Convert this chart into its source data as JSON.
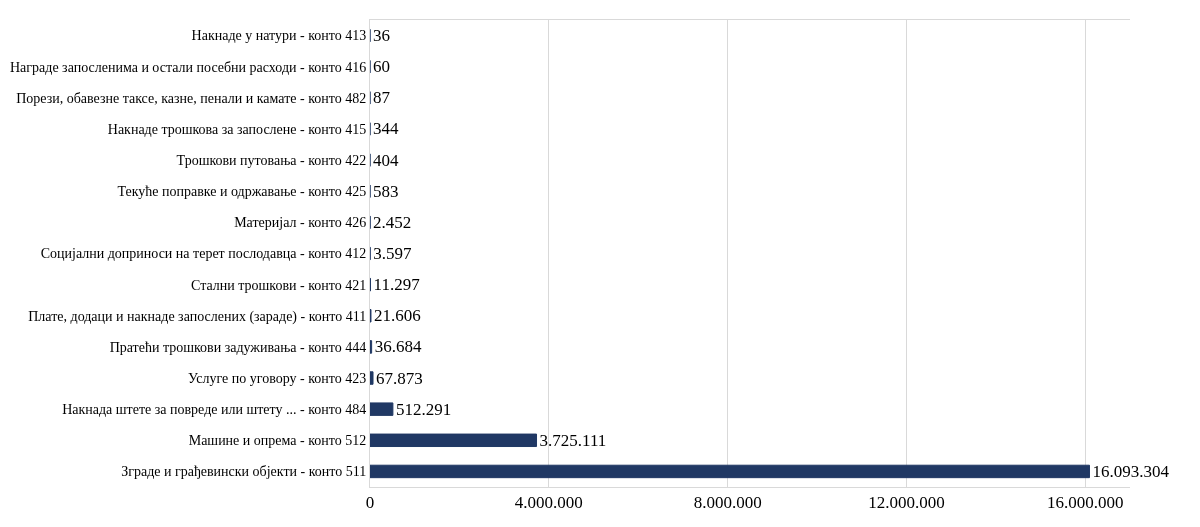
{
  "chart_data": {
    "type": "bar",
    "orientation": "horizontal",
    "categories": [
      "Накнаде у натури - конто 413",
      "Награде запосленима и остали посебни расходи - конто 416",
      "Порези, обавезне таксе, казне, пенали и камате - конто 482",
      "Накнаде трошкова за запослене - конто 415",
      "Трошкови путовања - конто 422",
      "Текуће поправке и одржавање - конто 425",
      "Материјал - конто 426",
      "Социјални доприноси на терет послодавца - конто 412",
      "Стални трошкови - конто 421",
      "Плате, додаци и накнаде запослених (зараде) - конто 411",
      "Пратећи трошкови задуживања - конто 444",
      "Услуге по уговору - конто 423",
      "Накнада штете за повреде или штету ... - конто 484",
      "Машине и опрема - конто 512",
      "Зграде и грађевински објекти - конто 511"
    ],
    "values": [
      36,
      60,
      87,
      344,
      404,
      583,
      2452,
      3597,
      11297,
      21606,
      36684,
      67873,
      512291,
      3725111,
      16093304
    ],
    "value_labels": [
      "36",
      "60",
      "87",
      "344",
      "404",
      "583",
      "2.452",
      "3.597",
      "11.297",
      "21.606",
      "36.684",
      "67.873",
      "512.291",
      "3.725.111",
      "16.093.304"
    ],
    "color": "#203864",
    "xlim": [
      0,
      17000000
    ],
    "xticks": [
      {
        "value": 0,
        "label": "0"
      },
      {
        "value": 4000000,
        "label": "4.000.000"
      },
      {
        "value": 8000000,
        "label": "8.000.000"
      },
      {
        "value": 12000000,
        "label": "12.000.000"
      },
      {
        "value": 16000000,
        "label": "16.000.000"
      }
    ],
    "grid": "x"
  }
}
